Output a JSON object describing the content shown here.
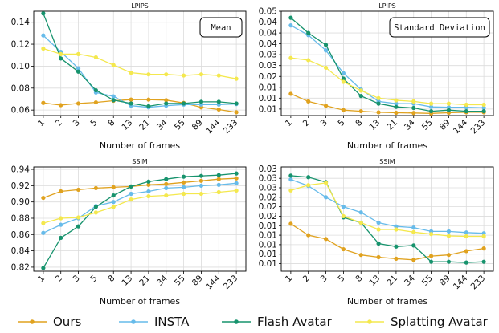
{
  "series_styles": [
    {
      "key": "ours",
      "color": "#e0a21f"
    },
    {
      "key": "insta",
      "color": "#67bbea"
    },
    {
      "key": "flash",
      "color": "#17936d"
    },
    {
      "key": "splatting",
      "color": "#f4e84e"
    }
  ],
  "legend": {
    "entries": [
      "Ours",
      "INSTA",
      "Flash Avatar",
      "Splatting Avatar"
    ]
  },
  "chart_data": [
    {
      "type": "line",
      "title": "LPIPS",
      "annotation": "Mean",
      "xlabel": "Number of frames",
      "ylabel": "",
      "categories": [
        "1",
        "2",
        "3",
        "5",
        "8",
        "13",
        "21",
        "34",
        "55",
        "89",
        "144",
        "233"
      ],
      "ylim": [
        0.055,
        0.15
      ],
      "yticks": [
        0.06,
        0.08,
        0.1,
        0.12,
        0.14
      ],
      "ytick_labels": [
        "0.06",
        "0.08",
        "0.10",
        "0.12",
        "0.14"
      ],
      "grid": true,
      "series": [
        {
          "name": "Ours",
          "values": [
            0.0665,
            0.0645,
            0.066,
            0.067,
            0.0685,
            0.0695,
            0.0695,
            0.069,
            0.0665,
            0.0625,
            0.0605,
            0.058
          ]
        },
        {
          "name": "INSTA",
          "values": [
            0.128,
            0.113,
            0.098,
            0.076,
            0.0725,
            0.064,
            0.0625,
            0.064,
            0.065,
            0.065,
            0.065,
            0.0655
          ]
        },
        {
          "name": "Flash Avatar",
          "values": [
            0.148,
            0.107,
            0.095,
            0.078,
            0.069,
            0.066,
            0.0635,
            0.066,
            0.066,
            0.0675,
            0.0675,
            0.066
          ]
        },
        {
          "name": "Splatting Avatar",
          "values": [
            0.116,
            0.111,
            0.111,
            0.108,
            0.101,
            0.094,
            0.0925,
            0.0925,
            0.0915,
            0.0925,
            0.0915,
            0.0885
          ]
        }
      ]
    },
    {
      "type": "line",
      "title": "LPIPS",
      "annotation": "Standard Deviation",
      "xlabel": "Number of frames",
      "ylabel": "",
      "categories": [
        "1",
        "2",
        "3",
        "5",
        "8",
        "13",
        "21",
        "34",
        "55",
        "89",
        "144",
        "233"
      ],
      "ylim": [
        0.002,
        0.05
      ],
      "yticks": [
        0.005,
        0.01,
        0.015,
        0.02,
        0.025,
        0.03,
        0.035,
        0.04,
        0.045,
        0.05
      ],
      "ytick_labels": [
        "0.01",
        "0.01",
        "0.01",
        "0.02",
        "0.03",
        "0.03",
        "0.04",
        "0.04",
        "0.04",
        "0.05"
      ],
      "grid": true,
      "series": [
        {
          "name": "Ours",
          "values": [
            0.012,
            0.0085,
            0.0065,
            0.0045,
            0.004,
            0.0035,
            0.0033,
            0.0032,
            0.003,
            0.0033,
            0.0035,
            0.0035
          ]
        },
        {
          "name": "INSTA",
          "values": [
            0.0435,
            0.039,
            0.032,
            0.0215,
            0.014,
            0.0085,
            0.0075,
            0.0075,
            0.006,
            0.0058,
            0.0058,
            0.0056
          ]
        },
        {
          "name": "Flash Avatar",
          "values": [
            0.047,
            0.04,
            0.0345,
            0.019,
            0.011,
            0.0075,
            0.006,
            0.0055,
            0.004,
            0.0045,
            0.004,
            0.004
          ]
        },
        {
          "name": "Splatting Avatar",
          "values": [
            0.0285,
            0.0275,
            0.024,
            0.0175,
            0.0135,
            0.01,
            0.009,
            0.0085,
            0.0075,
            0.0075,
            0.007,
            0.007
          ]
        }
      ]
    },
    {
      "type": "line",
      "title": "SSIM",
      "annotation": "",
      "xlabel": "Number of frames",
      "ylabel": "",
      "categories": [
        "1",
        "2",
        "3",
        "5",
        "8",
        "13",
        "21",
        "34",
        "55",
        "89",
        "144",
        "233"
      ],
      "ylim": [
        0.815,
        0.943
      ],
      "yticks": [
        0.82,
        0.84,
        0.86,
        0.88,
        0.9,
        0.92,
        0.94
      ],
      "ytick_labels": [
        "0.82",
        "0.84",
        "0.86",
        "0.88",
        "0.90",
        "0.92",
        "0.94"
      ],
      "grid": true,
      "series": [
        {
          "name": "Ours",
          "values": [
            0.905,
            0.913,
            0.915,
            0.917,
            0.918,
            0.919,
            0.921,
            0.922,
            0.924,
            0.926,
            0.928,
            0.929
          ]
        },
        {
          "name": "INSTA",
          "values": [
            0.862,
            0.872,
            0.88,
            0.895,
            0.9,
            0.91,
            0.913,
            0.917,
            0.918,
            0.92,
            0.921,
            0.923
          ]
        },
        {
          "name": "Flash Avatar",
          "values": [
            0.819,
            0.856,
            0.87,
            0.894,
            0.908,
            0.919,
            0.925,
            0.928,
            0.931,
            0.932,
            0.933,
            0.935
          ]
        },
        {
          "name": "Splatting Avatar",
          "values": [
            0.874,
            0.88,
            0.881,
            0.887,
            0.894,
            0.903,
            0.907,
            0.908,
            0.91,
            0.91,
            0.912,
            0.914
          ]
        }
      ]
    },
    {
      "type": "line",
      "title": "SSIM",
      "annotation": "",
      "xlabel": "Number of frames",
      "ylabel": "",
      "categories": [
        "1",
        "2",
        "3",
        "5",
        "8",
        "13",
        "21",
        "34",
        "55",
        "89",
        "144",
        "233"
      ],
      "ylim": [
        0.003,
        0.0305
      ],
      "yticks": [
        0.005,
        0.0075,
        0.01,
        0.0125,
        0.015,
        0.0175,
        0.02,
        0.0225,
        0.025,
        0.0275,
        0.03
      ],
      "ytick_labels": [
        "0.01",
        "0.01",
        "0.01",
        "0.01",
        "0.01",
        "0.02",
        "0.02",
        "0.02",
        "0.03",
        "0.03",
        "0.03"
      ],
      "grid": true,
      "series": [
        {
          "name": "Ours",
          "values": [
            0.0155,
            0.0125,
            0.0115,
            0.0088,
            0.0073,
            0.0067,
            0.0063,
            0.006,
            0.007,
            0.0073,
            0.0083,
            0.009
          ]
        },
        {
          "name": "INSTA",
          "values": [
            0.0272,
            0.0255,
            0.0225,
            0.02,
            0.0185,
            0.0158,
            0.0148,
            0.0145,
            0.0135,
            0.0135,
            0.0132,
            0.013
          ]
        },
        {
          "name": "Flash Avatar",
          "values": [
            0.0282,
            0.0278,
            0.0265,
            0.0172,
            0.0158,
            0.0103,
            0.0095,
            0.0098,
            0.0055,
            0.0055,
            0.0053,
            0.0055
          ]
        },
        {
          "name": "Splatting Avatar",
          "values": [
            0.0243,
            0.0257,
            0.0263,
            0.0175,
            0.0158,
            0.014,
            0.014,
            0.0133,
            0.0128,
            0.0123,
            0.0122,
            0.0122
          ]
        }
      ]
    }
  ]
}
